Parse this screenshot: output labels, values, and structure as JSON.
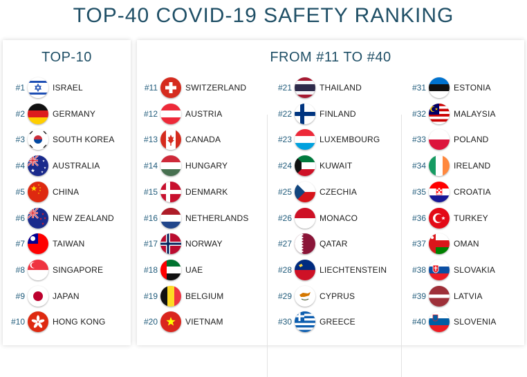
{
  "title": "TOP-40 COVID-19 SAFETY RANKING",
  "left_panel": {
    "heading": "TOP-10",
    "items": [
      {
        "rank": "#1",
        "country": "ISRAEL",
        "flag": "israel-flag-icon"
      },
      {
        "rank": "#2",
        "country": "GERMANY",
        "flag": "germany-flag-icon"
      },
      {
        "rank": "#3",
        "country": "SOUTH KOREA",
        "flag": "south-korea-flag-icon"
      },
      {
        "rank": "#4",
        "country": "AUSTRALIA",
        "flag": "australia-flag-icon"
      },
      {
        "rank": "#5",
        "country": "CHINA",
        "flag": "china-flag-icon"
      },
      {
        "rank": "#6",
        "country": "NEW ZEALAND",
        "flag": "new-zealand-flag-icon"
      },
      {
        "rank": "#7",
        "country": "TAIWAN",
        "flag": "taiwan-flag-icon"
      },
      {
        "rank": "#8",
        "country": "SINGAPORE",
        "flag": "singapore-flag-icon"
      },
      {
        "rank": "#9",
        "country": "JAPAN",
        "flag": "japan-flag-icon"
      },
      {
        "rank": "#10",
        "country": "HONG KONG",
        "flag": "hong-kong-flag-icon"
      }
    ]
  },
  "right_panel": {
    "heading": "FROM #11 TO #40",
    "columns": [
      [
        {
          "rank": "#11",
          "country": "SWITZERLAND",
          "flag": "switzerland-flag-icon"
        },
        {
          "rank": "#12",
          "country": "AUSTRIA",
          "flag": "austria-flag-icon"
        },
        {
          "rank": "#13",
          "country": "CANADA",
          "flag": "canada-flag-icon"
        },
        {
          "rank": "#14",
          "country": "HUNGARY",
          "flag": "hungary-flag-icon"
        },
        {
          "rank": "#15",
          "country": "DENMARK",
          "flag": "denmark-flag-icon"
        },
        {
          "rank": "#16",
          "country": "NETHERLANDS",
          "flag": "netherlands-flag-icon"
        },
        {
          "rank": "#17",
          "country": "NORWAY",
          "flag": "norway-flag-icon"
        },
        {
          "rank": "#18",
          "country": "UAE",
          "flag": "uae-flag-icon"
        },
        {
          "rank": "#19",
          "country": "BELGIUM",
          "flag": "belgium-flag-icon"
        },
        {
          "rank": "#20",
          "country": "VIETNAM",
          "flag": "vietnam-flag-icon"
        }
      ],
      [
        {
          "rank": "#21",
          "country": "THAILAND",
          "flag": "thailand-flag-icon"
        },
        {
          "rank": "#22",
          "country": "FINLAND",
          "flag": "finland-flag-icon"
        },
        {
          "rank": "#23",
          "country": "LUXEMBOURG",
          "flag": "luxembourg-flag-icon"
        },
        {
          "rank": "#24",
          "country": "KUWAIT",
          "flag": "kuwait-flag-icon"
        },
        {
          "rank": "#25",
          "country": "CZECHIA",
          "flag": "czechia-flag-icon"
        },
        {
          "rank": "#26",
          "country": "MONACO",
          "flag": "monaco-flag-icon"
        },
        {
          "rank": "#27",
          "country": "QATAR",
          "flag": "qatar-flag-icon"
        },
        {
          "rank": "#28",
          "country": "LIECHTENSTEIN",
          "flag": "liechtenstein-flag-icon"
        },
        {
          "rank": "#29",
          "country": "CYPRUS",
          "flag": "cyprus-flag-icon"
        },
        {
          "rank": "#30",
          "country": "GREECE",
          "flag": "greece-flag-icon"
        }
      ],
      [
        {
          "rank": "#31",
          "country": "ESTONIA",
          "flag": "estonia-flag-icon"
        },
        {
          "rank": "#32",
          "country": "MALAYSIA",
          "flag": "malaysia-flag-icon"
        },
        {
          "rank": "#33",
          "country": "POLAND",
          "flag": "poland-flag-icon"
        },
        {
          "rank": "#34",
          "country": "IRELAND",
          "flag": "ireland-flag-icon"
        },
        {
          "rank": "#35",
          "country": "CROATIA",
          "flag": "croatia-flag-icon"
        },
        {
          "rank": "#36",
          "country": "TURKEY",
          "flag": "turkey-flag-icon"
        },
        {
          "rank": "#37",
          "country": "OMAN",
          "flag": "oman-flag-icon"
        },
        {
          "rank": "#38",
          "country": "SLOVAKIA",
          "flag": "slovakia-flag-icon"
        },
        {
          "rank": "#39",
          "country": "LATVIA",
          "flag": "latvia-flag-icon"
        },
        {
          "rank": "#40",
          "country": "SLOVENIA",
          "flag": "slovenia-flag-icon"
        }
      ]
    ]
  },
  "colors": {
    "title": "#1f4f66",
    "rank": "#1f5a7a",
    "text": "#1a1a1a"
  }
}
